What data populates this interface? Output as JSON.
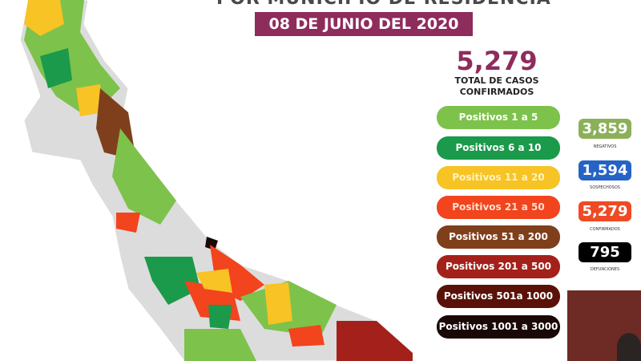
{
  "header": {
    "title": "POR MUNICIPIO DE RESIDENCIA",
    "date": "08 DE JUNIO DEL 2020"
  },
  "summary": {
    "total": "5,279",
    "label_line1": "TOTAL DE CASOS",
    "label_line2": "CONFIRMADOS"
  },
  "legend": [
    {
      "label": "Positivos 1 a 5",
      "color": "#7dc24b"
    },
    {
      "label": "Positivos 6 a 10",
      "color": "#1a9a4a"
    },
    {
      "label": "Positivos 11 a 20",
      "color": "#f7c325"
    },
    {
      "label": "Positivos 21 a 50",
      "color": "#f2441d"
    },
    {
      "label": "Positivos 51 a 200",
      "color": "#7f3f1c"
    },
    {
      "label": "Positivos 201 a 500",
      "color": "#a3211a"
    },
    {
      "label": "Positivos 501a 1000",
      "color": "#5a1208"
    },
    {
      "label": "Positivos 1001 a 3000",
      "color": "#1a0806"
    }
  ],
  "stats": [
    {
      "value": "3,859",
      "label": "NEGATIVOS",
      "color": "#8cb05a"
    },
    {
      "value": "1,594",
      "label": "SOSPECHOSOS",
      "color": "#2563c4"
    },
    {
      "value": "5,279",
      "label": "CONFIRMADOS",
      "color": "#ef4a24"
    },
    {
      "value": "795",
      "label": "DEFUNCIONES",
      "color": "#000000"
    }
  ],
  "map": {
    "no_cases_color": "#dcdcdc"
  }
}
